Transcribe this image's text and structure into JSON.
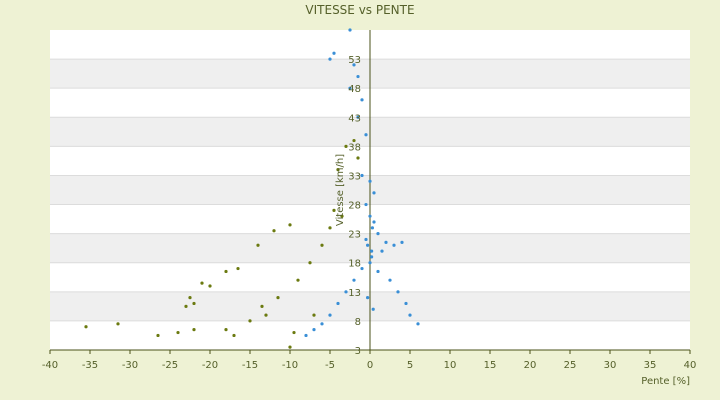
{
  "chart_data": {
    "type": "scatter",
    "title": "VITESSE vs PENTE",
    "xlabel": "Pente [%]",
    "ylabel": "Vitesse [km/h]",
    "xlim": [
      -40,
      40
    ],
    "ylim": [
      3,
      58
    ],
    "x_ticks": [
      -40,
      -35,
      -30,
      -25,
      -20,
      -15,
      -10,
      -5,
      0,
      5,
      10,
      15,
      20,
      25,
      30,
      35,
      40
    ],
    "y_ticks": [
      3,
      8,
      13,
      18,
      23,
      28,
      33,
      38,
      43,
      48,
      53
    ],
    "x_tick_labels": [
      "-40",
      "-35",
      "-30",
      "-25",
      "-20",
      "-15",
      "-10",
      "-5",
      "0",
      "5",
      "10",
      "15",
      "20",
      "25",
      "30",
      "35",
      "40"
    ],
    "y_tick_labels": [
      "3",
      "8",
      "13",
      "18",
      "23",
      "28",
      "33",
      "38",
      "43",
      "48",
      "53"
    ],
    "grid": true,
    "legend": "none",
    "colors": {
      "series_olive": "#6b7a10",
      "series_blue": "#3a8fd6",
      "band_light": "#ffffff",
      "band_dark": "#efefef",
      "axis_zero": "#4a5218",
      "text": "#55602a",
      "background": "#eef2d4"
    },
    "series": [
      {
        "color": "#6b7a10",
        "points": [
          [
            -35.5,
            7
          ],
          [
            -31.5,
            7.5
          ],
          [
            -26.5,
            5.5
          ],
          [
            -24,
            6
          ],
          [
            -22,
            6.5
          ],
          [
            -18,
            6.5
          ],
          [
            -17,
            5.5
          ],
          [
            -15,
            8
          ],
          [
            -13,
            9
          ],
          [
            -22,
            11
          ],
          [
            -20,
            14
          ],
          [
            -18,
            16.5
          ],
          [
            -16.5,
            17
          ],
          [
            -14,
            21
          ],
          [
            -12,
            23.5
          ],
          [
            -10,
            24.5
          ],
          [
            -10,
            3.5
          ],
          [
            -9.5,
            6
          ],
          [
            -7,
            9
          ],
          [
            -4.5,
            27
          ],
          [
            -4,
            34
          ],
          [
            -3,
            38
          ],
          [
            -2,
            39
          ],
          [
            -1.5,
            36
          ],
          [
            -23,
            10.5
          ],
          [
            -22.5,
            12
          ],
          [
            -21,
            14.5
          ],
          [
            -13.5,
            10.5
          ],
          [
            -11.5,
            12
          ],
          [
            -9,
            15
          ],
          [
            -7.5,
            18
          ],
          [
            -6,
            21
          ],
          [
            -5,
            24
          ],
          [
            -3.5,
            26
          ]
        ]
      },
      {
        "color": "#3a8fd6",
        "points": [
          [
            -2.5,
            58
          ],
          [
            -4.5,
            54
          ],
          [
            -5,
            53
          ],
          [
            -2,
            52
          ],
          [
            -1.5,
            50
          ],
          [
            -2.5,
            48
          ],
          [
            -1,
            46
          ],
          [
            -1.5,
            43
          ],
          [
            -0.5,
            40
          ],
          [
            -1,
            33
          ],
          [
            0,
            32
          ],
          [
            0.5,
            30
          ],
          [
            -0.5,
            28
          ],
          [
            0,
            26
          ],
          [
            0.5,
            25
          ],
          [
            1,
            23
          ],
          [
            -0.5,
            22
          ],
          [
            2,
            21.5
          ],
          [
            3,
            21
          ],
          [
            4,
            21.5
          ],
          [
            1.5,
            20
          ],
          [
            0,
            18
          ],
          [
            -1,
            17
          ],
          [
            1,
            16.5
          ],
          [
            2.5,
            15
          ],
          [
            3.5,
            13
          ],
          [
            4.5,
            11
          ],
          [
            5,
            9
          ],
          [
            6,
            7.5
          ],
          [
            -2,
            15
          ],
          [
            -3,
            13
          ],
          [
            -4,
            11
          ],
          [
            -5,
            9
          ],
          [
            -6,
            7.5
          ],
          [
            -7,
            6.5
          ],
          [
            -8,
            5.5
          ],
          [
            0.2,
            20
          ],
          [
            0.2,
            19
          ],
          [
            0.3,
            24
          ],
          [
            -0.3,
            21
          ],
          [
            -0.3,
            12
          ],
          [
            0.4,
            10
          ]
        ]
      }
    ]
  }
}
